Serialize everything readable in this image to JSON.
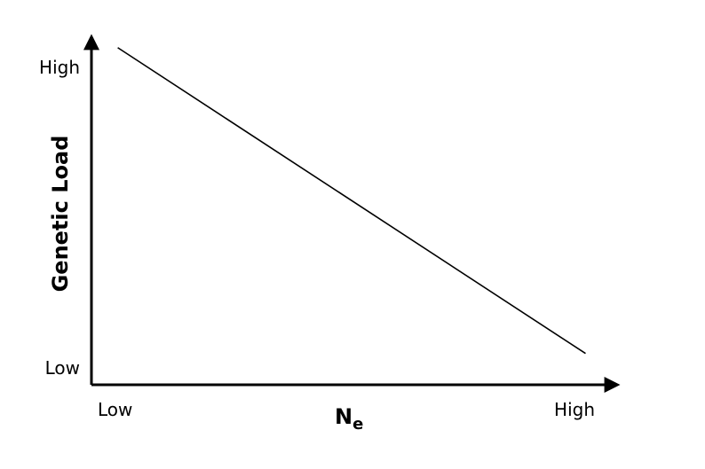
{
  "chart_data": {
    "type": "line",
    "xlabel": "N",
    "xlabel_subscript": "e",
    "ylabel": "Genetic Load",
    "x_ticks": [
      "Low",
      "High"
    ],
    "y_ticks": [
      "Low",
      "High"
    ],
    "xlim": [
      0,
      1
    ],
    "ylim": [
      0,
      1
    ],
    "grid": false,
    "series": [
      {
        "x": [
          0.05,
          0.94
        ],
        "y": [
          0.97,
          0.09
        ]
      }
    ],
    "colors": {
      "axis": "#000000",
      "line": "#000000"
    }
  }
}
